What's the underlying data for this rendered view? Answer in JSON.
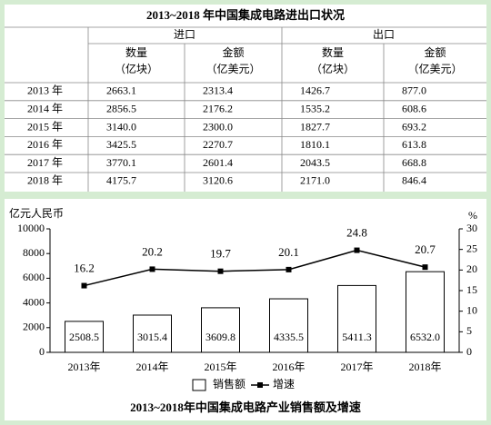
{
  "table": {
    "title": "2013~2018 年中国集成电路进出口状况",
    "groups": [
      "进口",
      "出口"
    ],
    "columns": [
      {
        "name": "数量",
        "unit": "（亿块）"
      },
      {
        "name": "金额",
        "unit": "（亿美元）"
      },
      {
        "name": "数量",
        "unit": "（亿块）"
      },
      {
        "name": "金额",
        "unit": "（亿美元）"
      }
    ],
    "rows": [
      [
        "2013 年",
        "2663.1",
        "2313.4",
        "1426.7",
        "877.0"
      ],
      [
        "2014 年",
        "2856.5",
        "2176.2",
        "1535.2",
        "608.6"
      ],
      [
        "2015 年",
        "3140.0",
        "2300.0",
        "1827.7",
        "693.2"
      ],
      [
        "2016 年",
        "3425.5",
        "2270.7",
        "1810.1",
        "613.8"
      ],
      [
        "2017 年",
        "3770.1",
        "2601.4",
        "2043.5",
        "668.8"
      ],
      [
        "2018 年",
        "4175.7",
        "3120.6",
        "2171.0",
        "846.4"
      ]
    ]
  },
  "chart_data": {
    "type": "bar",
    "title": "2013~2018年中国集成电路产业销售额及增速",
    "ylabel": "亿元人民币",
    "y2label": "%",
    "categories": [
      "2013年",
      "2014年",
      "2015年",
      "2016年",
      "2017年",
      "2018年"
    ],
    "series": [
      {
        "name": "销售额",
        "color": "#ffffff",
        "values": [
          2508.5,
          3015.4,
          3609.8,
          4335.5,
          5411.3,
          6532.0
        ],
        "value_labels": [
          "2508.5",
          "3015.4",
          "3609.8",
          "4335.5",
          "5411.3",
          "6532.0"
        ]
      },
      {
        "name": "增速",
        "color": "#000000",
        "axis": "y2",
        "values": [
          16.2,
          20.2,
          19.7,
          20.1,
          24.8,
          20.7
        ]
      }
    ],
    "ylim": [
      0,
      10000
    ],
    "yticks": [
      0,
      2000,
      4000,
      6000,
      8000,
      10000
    ],
    "y2lim": [
      0,
      30
    ],
    "y2ticks": [
      0,
      5,
      10,
      15,
      20,
      25,
      30
    ],
    "grid": false,
    "legend": "bottom"
  }
}
